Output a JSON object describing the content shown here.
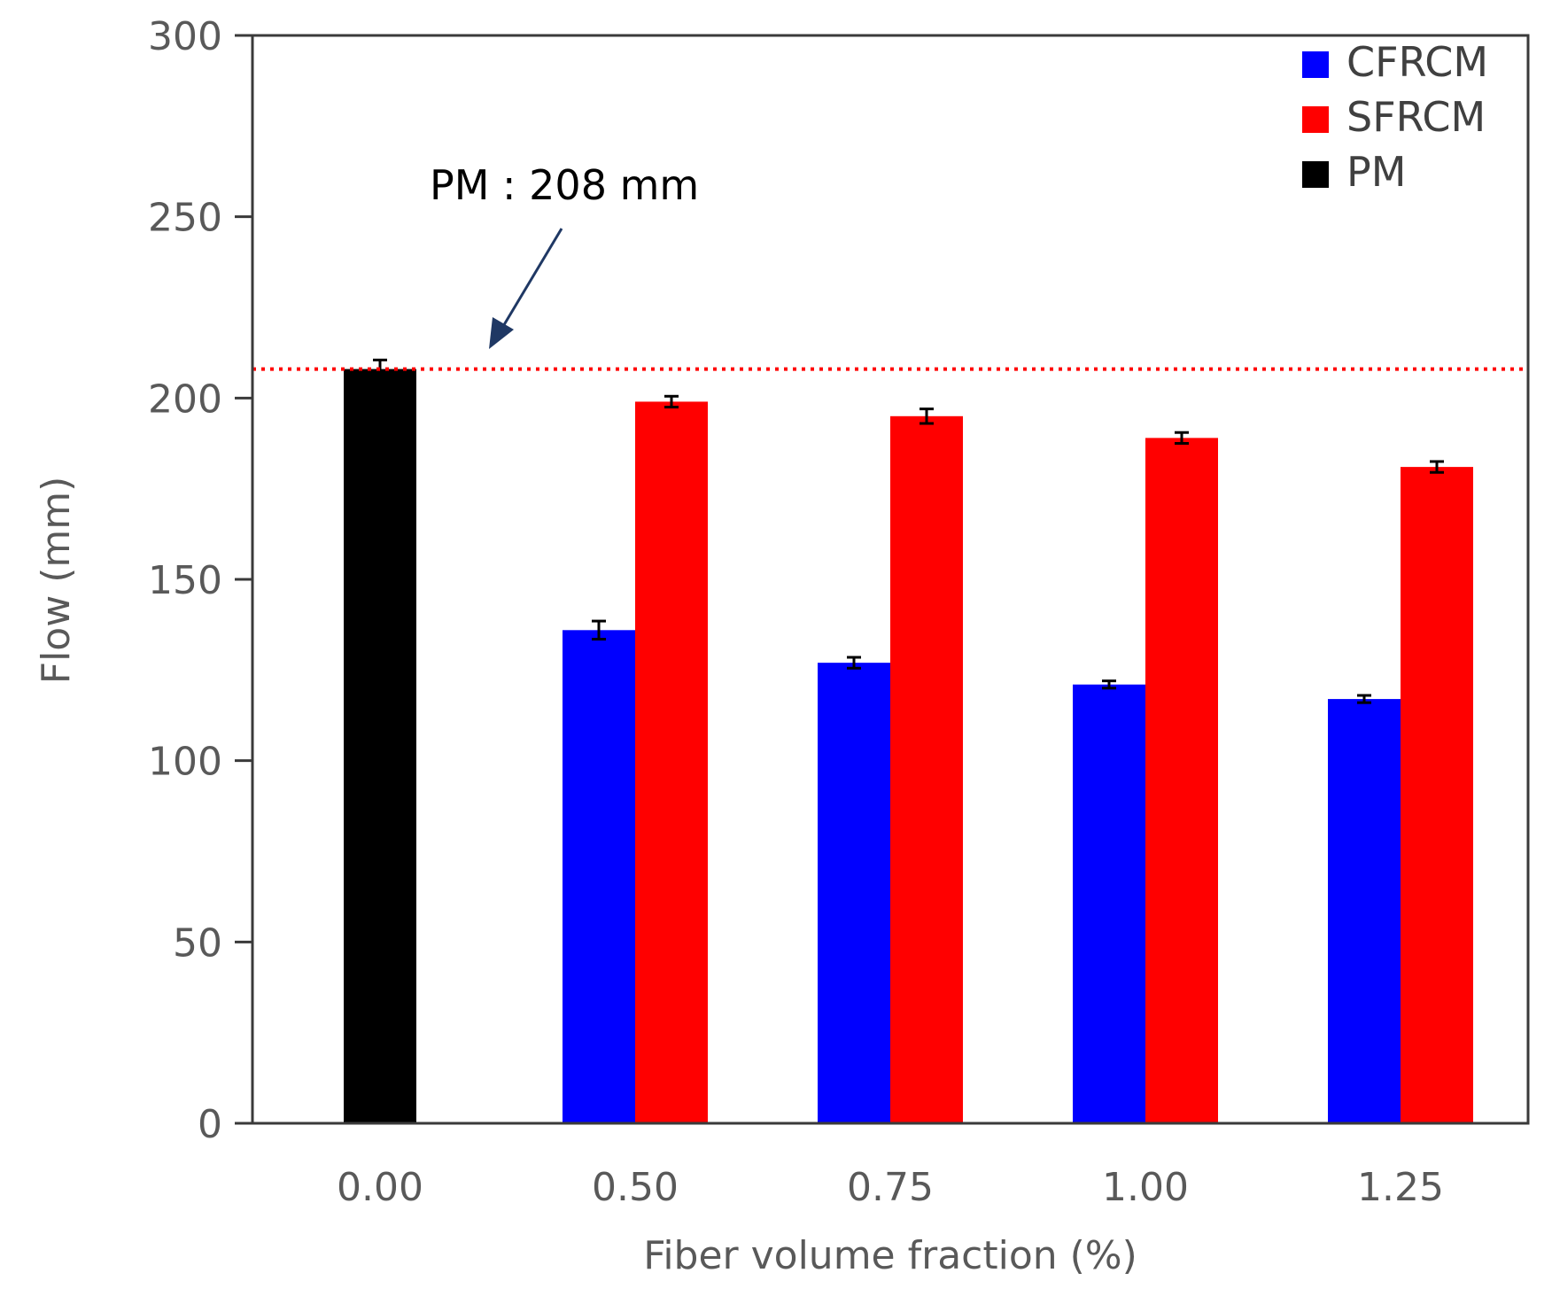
{
  "chart_data": {
    "type": "bar",
    "title": "",
    "xlabel": "Fiber volume fraction (%)",
    "ylabel": "Flow (mm)",
    "ylim": [
      0,
      300
    ],
    "yticks": [
      "0",
      "50",
      "100",
      "150",
      "200",
      "250",
      "300"
    ],
    "categories": [
      "0.00",
      "0.50",
      "0.75",
      "1.00",
      "1.25"
    ],
    "series": [
      {
        "name": "CFRCM",
        "color": "#0000ff",
        "values": [
          null,
          136,
          127,
          121,
          117
        ],
        "errors": [
          null,
          2.5,
          1.5,
          1.0,
          1.0
        ]
      },
      {
        "name": "SFRCM",
        "color": "#ff0000",
        "values": [
          null,
          199,
          195,
          189,
          181
        ],
        "errors": [
          null,
          1.5,
          2.0,
          1.5,
          1.5
        ]
      },
      {
        "name": "PM",
        "color": "#000000",
        "values": [
          208,
          null,
          null,
          null,
          null
        ],
        "errors": [
          2.5,
          null,
          null,
          null,
          null
        ]
      }
    ],
    "reference_line": {
      "value": 208,
      "color": "#ff0000",
      "style": "dotted"
    },
    "annotation": {
      "text": "PM : 208 mm",
      "arrow_color": "#1f3864"
    },
    "legend": {
      "position": "top-right"
    },
    "grid": false
  }
}
